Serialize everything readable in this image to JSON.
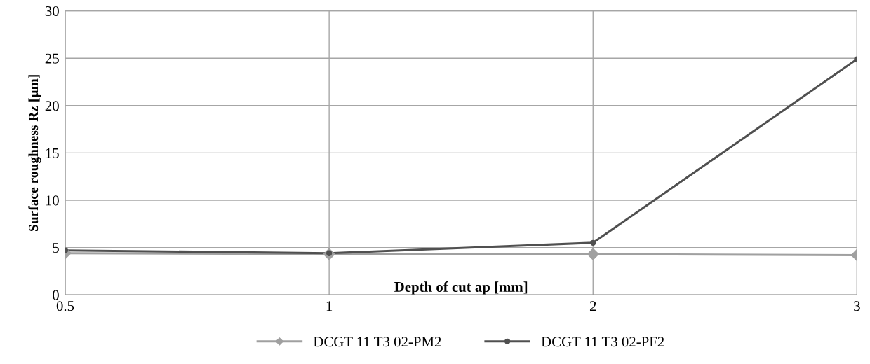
{
  "chart_data": {
    "type": "line",
    "xlabel": "Depth of cut ap [mm]",
    "ylabel": "Surface roughness Rz [µm]",
    "categories": [
      "0.5",
      "1",
      "2",
      "3"
    ],
    "series": [
      {
        "name": "DCGT 11 T3 02-PM2",
        "color": "#a0a0a0",
        "marker": "diamond",
        "values": [
          4.4,
          4.3,
          4.3,
          4.2
        ]
      },
      {
        "name": "DCGT 11 T3 02-PF2",
        "color": "#505050",
        "marker": "circle",
        "values": [
          4.7,
          4.4,
          5.5,
          24.9
        ]
      }
    ],
    "ylim": [
      0,
      30
    ],
    "yticks": [
      0,
      5,
      10,
      15,
      20,
      25,
      30
    ],
    "grid": true,
    "legend": "bottom",
    "line_style": "solid"
  }
}
